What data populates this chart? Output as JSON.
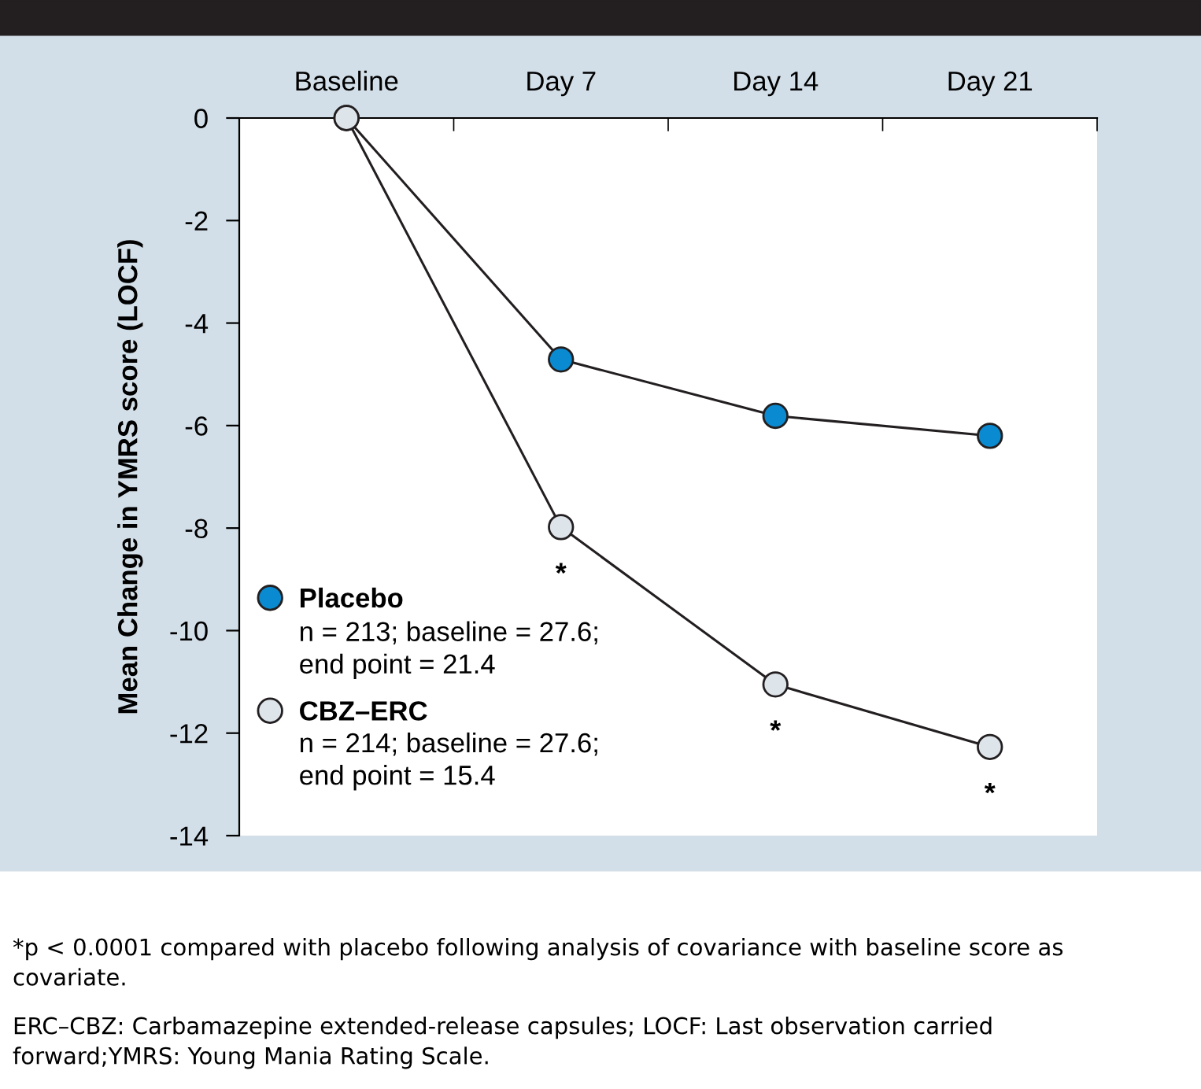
{
  "chart_data": {
    "type": "line",
    "ylabel": "Mean Change in YMRS score (LOCF)",
    "categories": [
      "Baseline",
      "Day 7",
      "Day 14",
      "Day 21"
    ],
    "series": [
      {
        "name": "Placebo",
        "color": "#0a8ad0",
        "values": [
          0,
          -4.71,
          -5.81,
          -6.2
        ]
      },
      {
        "name": "CBZ–ERC",
        "color": "#dde4ea",
        "values": [
          0,
          -7.98,
          -11.05,
          -12.27
        ]
      }
    ],
    "ylim": [
      -14,
      0
    ],
    "yticks": [
      0,
      -2,
      -4,
      -6,
      -8,
      -10,
      -12,
      -14
    ],
    "marker": "circle",
    "line_style": "solid",
    "grid": false,
    "legend": "bottom left",
    "annotations": [
      "n = 213; baseline = 27.6; end point = 21.4",
      "n = 214; baseline = 27.6; end point = 15.4",
      {
        "text": "*",
        "x": "Day 7",
        "y": -7.98
      },
      {
        "text": "*",
        "x": "Day 14",
        "y": -11.05
      },
      {
        "text": "*",
        "x": "Day 21",
        "y": -12.27
      },
      "*p < 0.0001 compared with placebo following analysis of covariance with baseline score as covariate.",
      "ERC–CBZ: Carbamazepine extended-release capsules; LOCF: Last observation carried forward;YMRS: Young Mania Rating Scale."
    ]
  }
}
